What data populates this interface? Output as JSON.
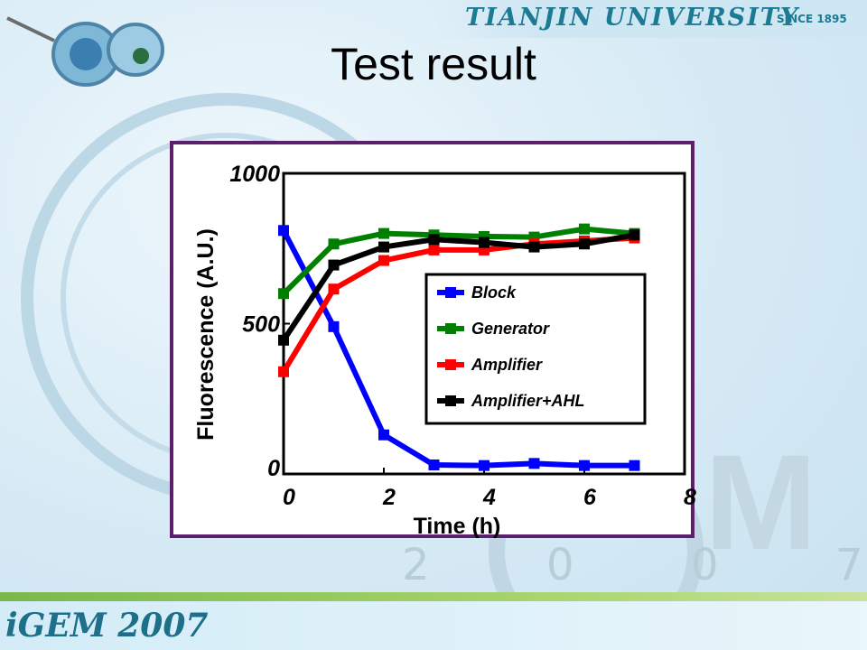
{
  "header": {
    "university": "TIANJIN UNIVERSITY",
    "since": "SINCE 1895"
  },
  "slide": {
    "title": "Test result"
  },
  "decor": {
    "watermark_year_digits": [
      "2",
      "0",
      "0",
      "7"
    ],
    "footer_logo": "iGEM 2007"
  },
  "colors": {
    "frame": "#5b1f6c",
    "block": "#0000ff",
    "generator": "#008000",
    "amplifier": "#ff0000",
    "amplifier_ahl": "#000000"
  },
  "chart_data": {
    "type": "line",
    "xlabel": "Time (h)",
    "ylabel": "Fluorescence (A.U.)",
    "xlim": [
      0,
      8
    ],
    "ylim": [
      0,
      1000
    ],
    "xticks": [
      "0",
      "2",
      "4",
      "6",
      "8"
    ],
    "yticks": [
      "0",
      "500",
      "1000"
    ],
    "legend_position": "center-right",
    "x": [
      0,
      1,
      2,
      3,
      4,
      5,
      6,
      7
    ],
    "series": [
      {
        "name": "Block",
        "color": "#0000ff",
        "values": [
          810,
          490,
          130,
          30,
          28,
          35,
          28,
          28
        ]
      },
      {
        "name": "Generator",
        "color": "#008000",
        "values": [
          600,
          765,
          800,
          795,
          790,
          788,
          815,
          800
        ]
      },
      {
        "name": "Amplifier",
        "color": "#ff0000",
        "values": [
          340,
          615,
          710,
          745,
          745,
          765,
          775,
          785
        ]
      },
      {
        "name": "Amplifier+AHL",
        "color": "#000000",
        "values": [
          445,
          695,
          755,
          780,
          770,
          755,
          765,
          795
        ]
      }
    ]
  }
}
